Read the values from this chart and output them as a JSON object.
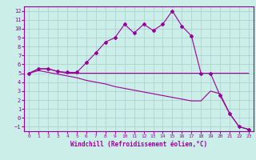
{
  "xlabel": "Windchill (Refroidissement éolien,°C)",
  "background_color": "#cceee8",
  "grid_color": "#aacccc",
  "line_color": "#990099",
  "xlim": [
    -0.5,
    23.5
  ],
  "ylim": [
    -1.5,
    12.5
  ],
  "xticks": [
    0,
    1,
    2,
    3,
    4,
    5,
    6,
    7,
    8,
    9,
    10,
    11,
    12,
    13,
    14,
    15,
    16,
    17,
    18,
    19,
    20,
    21,
    22,
    23
  ],
  "yticks": [
    -1,
    0,
    1,
    2,
    3,
    4,
    5,
    6,
    7,
    8,
    9,
    10,
    11,
    12
  ],
  "line1_x": [
    0,
    1,
    2,
    3,
    4,
    5,
    6,
    7,
    8,
    9,
    10,
    11,
    12,
    13,
    14,
    15,
    16,
    17,
    18,
    19,
    20,
    21,
    22,
    23
  ],
  "line1_y": [
    5.0,
    5.5,
    5.5,
    5.2,
    5.1,
    5.1,
    6.2,
    7.3,
    8.5,
    9.0,
    10.5,
    9.5,
    10.5,
    9.8,
    10.5,
    12.0,
    10.3,
    9.2,
    5.0,
    5.0,
    2.5,
    0.5,
    -1.0,
    -1.3
  ],
  "line2_x": [
    0,
    1,
    2,
    3,
    4,
    5,
    6,
    7,
    8,
    9,
    10,
    11,
    12,
    13,
    14,
    15,
    16,
    17,
    18,
    19,
    20,
    21,
    22,
    23
  ],
  "line2_y": [
    5.0,
    5.5,
    5.5,
    5.2,
    5.0,
    5.0,
    5.0,
    5.0,
    5.0,
    5.0,
    5.0,
    5.0,
    5.0,
    5.0,
    5.0,
    5.0,
    5.0,
    5.0,
    5.0,
    5.0,
    5.0,
    5.0,
    5.0,
    5.0
  ],
  "line3_x": [
    0,
    1,
    2,
    3,
    4,
    5,
    6,
    7,
    8,
    9,
    10,
    11,
    12,
    13,
    14,
    15,
    16,
    17,
    18,
    19,
    20,
    21,
    22,
    23
  ],
  "line3_y": [
    5.0,
    5.3,
    5.1,
    4.9,
    4.7,
    4.5,
    4.2,
    4.0,
    3.8,
    3.5,
    3.3,
    3.1,
    2.9,
    2.7,
    2.5,
    2.3,
    2.1,
    1.9,
    1.9,
    3.0,
    2.7,
    0.5,
    -1.0,
    -1.3
  ]
}
